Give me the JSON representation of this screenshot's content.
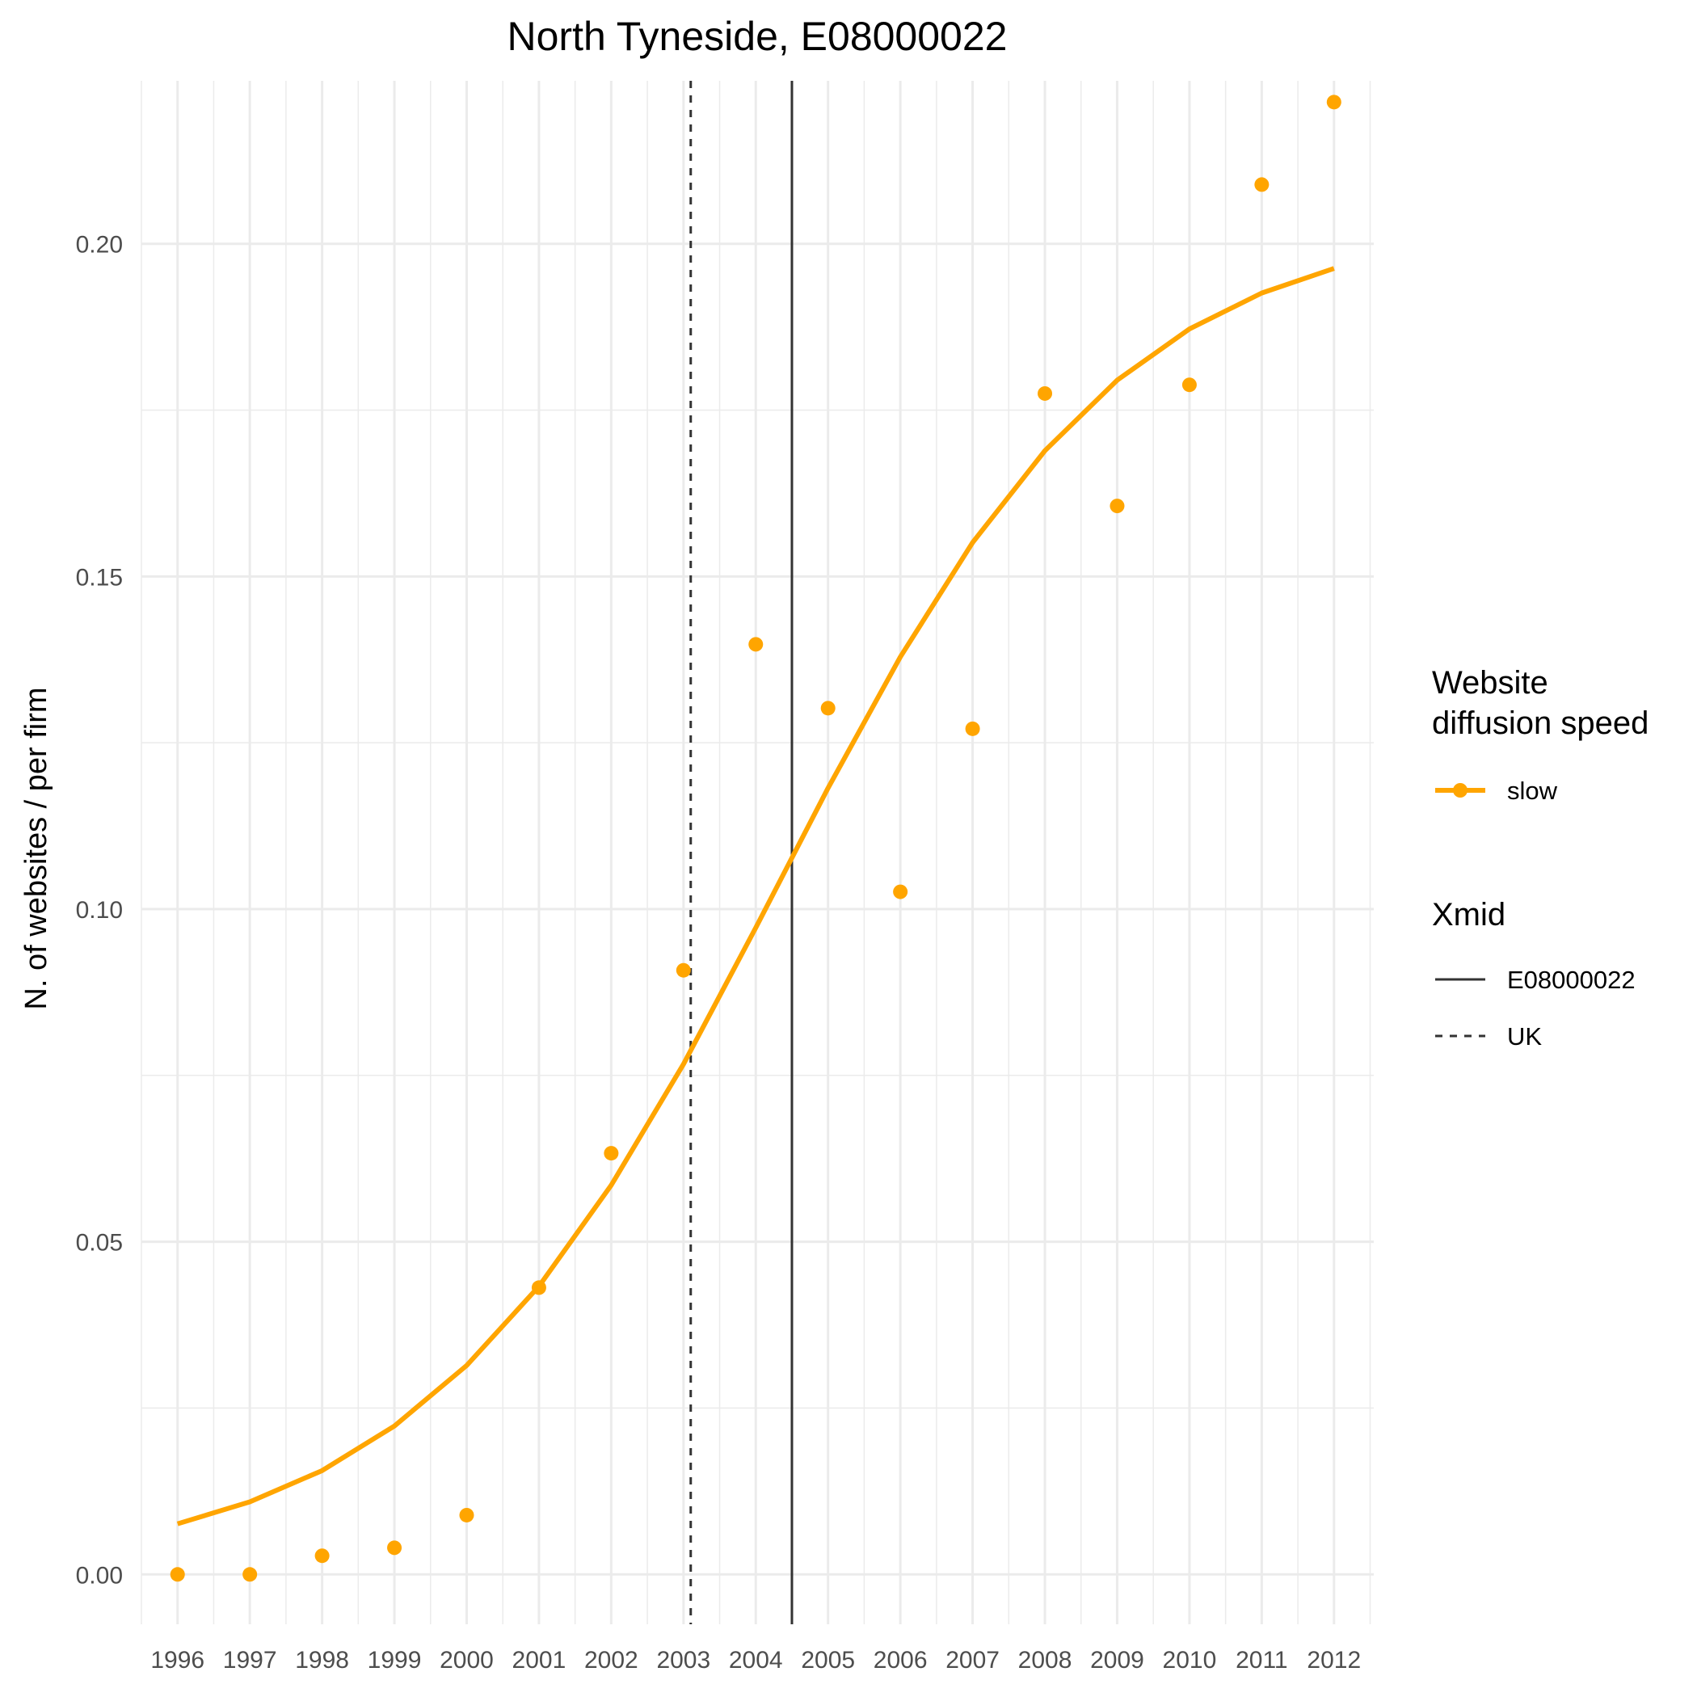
{
  "chart_data": {
    "type": "line",
    "title": "North Tyneside, E08000022",
    "xlabel": "",
    "ylabel": "N. of websites / per firm",
    "x": [
      1996,
      1997,
      1998,
      1999,
      2000,
      2001,
      2002,
      2003,
      2004,
      2005,
      2006,
      2007,
      2008,
      2009,
      2010,
      2011,
      2012
    ],
    "x_tick_labels": [
      "1996",
      "1997",
      "1998",
      "1999",
      "2000",
      "2001",
      "2002",
      "2003",
      "2004",
      "2005",
      "2006",
      "2007",
      "2008",
      "2009",
      "2010",
      "2011",
      "2012"
    ],
    "xlim": [
      1995.5,
      2012.55
    ],
    "y_ticks": [
      0.0,
      0.05,
      0.1,
      0.15,
      0.2
    ],
    "y_tick_labels": [
      "0.00",
      "0.05",
      "0.10",
      "0.15",
      "0.20"
    ],
    "ylim": [
      -0.0075,
      0.2245
    ],
    "grid": true,
    "series": [
      {
        "name": "slow",
        "kind": "points",
        "color": "#FFA500",
        "values": [
          0.0,
          0.0,
          0.0028,
          0.004,
          0.0089,
          0.0431,
          0.0633,
          0.0908,
          0.1398,
          0.1302,
          0.1026,
          0.1271,
          0.1775,
          0.1606,
          0.1788,
          0.2089,
          0.2213
        ]
      },
      {
        "name": "slow",
        "kind": "fitted-line",
        "color": "#FFA500",
        "values": [
          0.0076,
          0.0109,
          0.0156,
          0.0223,
          0.0314,
          0.0433,
          0.0585,
          0.0767,
          0.0972,
          0.1182,
          0.1379,
          0.1551,
          0.1689,
          0.1795,
          0.1872,
          0.1926,
          0.1963
        ]
      }
    ],
    "vlines": [
      {
        "name": "E08000022",
        "x": 2004.5,
        "style": "solid",
        "color": "#333333"
      },
      {
        "name": "UK",
        "x": 2003.1,
        "style": "dashed",
        "color": "#333333"
      }
    ],
    "legend": {
      "placement": "right",
      "groups": [
        {
          "title": "Website\ndiffusion speed",
          "items": [
            {
              "label": "slow",
              "style": "line-point",
              "color": "#FFA500"
            }
          ]
        },
        {
          "title": "Xmid",
          "items": [
            {
              "label": "E08000022",
              "style": "solid",
              "color": "#333333"
            },
            {
              "label": "UK",
              "style": "dashed",
              "color": "#333333"
            }
          ]
        }
      ]
    }
  }
}
